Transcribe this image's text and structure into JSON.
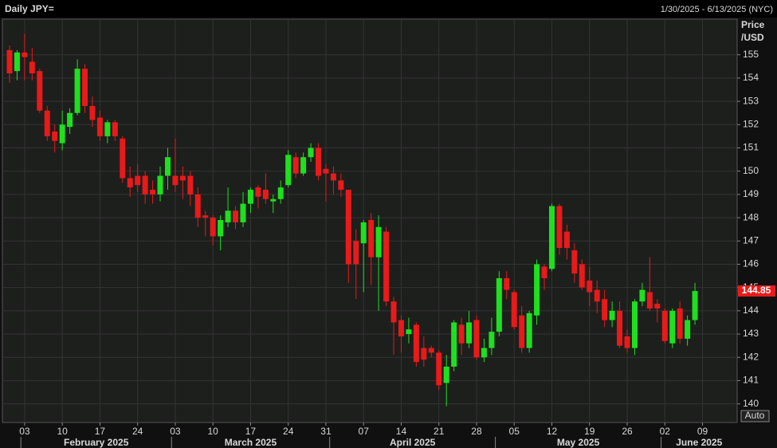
{
  "chart_data": {
    "type": "candlestick",
    "title": "Daily JPY=",
    "date_range": "1/30/2025 - 6/13/2025 (NYC)",
    "ylabel_lines": [
      "Price",
      "/USD"
    ],
    "auto_button": "Auto",
    "last_price": 144.85,
    "up_color": "#1ee01e",
    "down_color": "#e81a1a",
    "grid": true,
    "ylim": [
      139.2,
      156.6
    ],
    "yticks": [
      140,
      141,
      142,
      143,
      144,
      145,
      146,
      147,
      148,
      149,
      150,
      151,
      152,
      153,
      154,
      155
    ],
    "categories": [
      "2025-01-30",
      "2025-01-31",
      "2025-02-03",
      "2025-02-04",
      "2025-02-05",
      "2025-02-06",
      "2025-02-07",
      "2025-02-10",
      "2025-02-11",
      "2025-02-12",
      "2025-02-13",
      "2025-02-14",
      "2025-02-17",
      "2025-02-18",
      "2025-02-19",
      "2025-02-20",
      "2025-02-21",
      "2025-02-24",
      "2025-02-25",
      "2025-02-26",
      "2025-02-27",
      "2025-02-28",
      "2025-03-03",
      "2025-03-04",
      "2025-03-05",
      "2025-03-06",
      "2025-03-07",
      "2025-03-10",
      "2025-03-11",
      "2025-03-12",
      "2025-03-13",
      "2025-03-14",
      "2025-03-17",
      "2025-03-18",
      "2025-03-19",
      "2025-03-20",
      "2025-03-21",
      "2025-03-24",
      "2025-03-25",
      "2025-03-26",
      "2025-03-27",
      "2025-03-28",
      "2025-03-31",
      "2025-04-01",
      "2025-04-02",
      "2025-04-03",
      "2025-04-04",
      "2025-04-07",
      "2025-04-08",
      "2025-04-09",
      "2025-04-10",
      "2025-04-11",
      "2025-04-14",
      "2025-04-15",
      "2025-04-16",
      "2025-04-17",
      "2025-04-18",
      "2025-04-21",
      "2025-04-22",
      "2025-04-23",
      "2025-04-24",
      "2025-04-25",
      "2025-04-28",
      "2025-04-29",
      "2025-04-30",
      "2025-05-01",
      "2025-05-02",
      "2025-05-05",
      "2025-05-06",
      "2025-05-07",
      "2025-05-08",
      "2025-05-09",
      "2025-05-12",
      "2025-05-13",
      "2025-05-14",
      "2025-05-15",
      "2025-05-16",
      "2025-05-19",
      "2025-05-20",
      "2025-05-21",
      "2025-05-22",
      "2025-05-23",
      "2025-05-26",
      "2025-05-27",
      "2025-05-28",
      "2025-05-29",
      "2025-05-30",
      "2025-06-02",
      "2025-06-03",
      "2025-06-04",
      "2025-06-05",
      "2025-06-06",
      "2025-06-09",
      "2025-06-10",
      "2025-06-11",
      "2025-06-12",
      "2025-06-13"
    ],
    "open": [
      155.2,
      154.3,
      155.1,
      154.7,
      154.3,
      152.6,
      151.7,
      151.2,
      151.9,
      152.5,
      154.4,
      152.8,
      152.3,
      151.5,
      152.1,
      151.4,
      149.7,
      149.8,
      149.8,
      149.2,
      149.0,
      149.8,
      149.8,
      149.8,
      149.8,
      149.0,
      148.1,
      148.0,
      147.2,
      147.8,
      148.3,
      147.8,
      148.6,
      149.3,
      149.2,
      148.7,
      148.8,
      149.4,
      150.6,
      149.9,
      150.6,
      151.0,
      150.1,
      149.9,
      149.6,
      149.2,
      147.0,
      146.9,
      147.9,
      146.3,
      147.4,
      144.4,
      143.6,
      143.0,
      143.4,
      142.4,
      142.4,
      142.2,
      140.9,
      141.6,
      143.4,
      142.6,
      143.6,
      142.0,
      142.4,
      143.1,
      145.4,
      144.8,
      143.8,
      142.4,
      143.8,
      145.9,
      145.8,
      148.5,
      147.4,
      146.6,
      146.0,
      145.3,
      144.9,
      144.5,
      143.6,
      144.0,
      142.9,
      142.4,
      144.4,
      144.8,
      144.3,
      144.0,
      142.6,
      144.1,
      142.8,
      143.6,
      null,
      null,
      null,
      null,
      null
    ],
    "high": [
      155.4,
      155.2,
      155.9,
      155.3,
      154.4,
      152.8,
      152.0,
      152.6,
      152.7,
      154.8,
      154.6,
      153.2,
      152.6,
      152.2,
      152.2,
      151.5,
      150.2,
      150.3,
      150.0,
      149.6,
      150.2,
      151.0,
      151.4,
      150.2,
      150.0,
      149.3,
      148.3,
      148.1,
      148.1,
      149.3,
      148.5,
      149.1,
      149.3,
      149.4,
      149.9,
      149.0,
      149.6,
      150.9,
      150.8,
      150.8,
      151.2,
      151.2,
      150.3,
      150.2,
      149.9,
      149.2,
      147.5,
      147.9,
      148.2,
      148.1,
      147.6,
      144.6,
      143.8,
      143.7,
      143.5,
      142.9,
      142.5,
      142.3,
      142.1,
      143.6,
      143.7,
      144.0,
      143.8,
      142.8,
      143.7,
      145.7,
      145.7,
      144.9,
      144.2,
      144.0,
      146.2,
      146.0,
      148.6,
      148.6,
      147.7,
      146.9,
      146.2,
      145.9,
      145.3,
      144.9,
      144.4,
      144.4,
      143.2,
      144.5,
      145.2,
      146.3,
      144.5,
      144.1,
      144.1,
      144.4,
      143.8,
      145.2,
      null,
      null,
      null,
      null,
      null
    ],
    "low": [
      153.8,
      153.9,
      153.9,
      153.9,
      152.5,
      151.3,
      150.8,
      150.9,
      151.6,
      152.4,
      152.5,
      151.9,
      151.3,
      151.2,
      151.3,
      149.5,
      148.9,
      149.1,
      148.6,
      148.6,
      148.7,
      149.2,
      149.1,
      148.8,
      148.5,
      147.6,
      147.2,
      146.8,
      146.6,
      147.6,
      147.5,
      147.6,
      148.2,
      148.4,
      148.6,
      148.2,
      148.6,
      149.3,
      149.7,
      149.8,
      150.4,
      149.6,
      148.7,
      149.0,
      148.9,
      145.2,
      144.5,
      144.8,
      145.1,
      144.0,
      144.2,
      142.1,
      142.2,
      142.6,
      141.6,
      141.6,
      142.0,
      140.6,
      139.9,
      141.4,
      142.1,
      142.4,
      141.9,
      141.8,
      142.1,
      142.9,
      144.5,
      143.2,
      142.2,
      142.2,
      143.4,
      144.9,
      145.7,
      146.4,
      146.2,
      145.2,
      144.9,
      144.2,
      143.9,
      143.3,
      143.3,
      142.4,
      142.2,
      142.1,
      144.2,
      144.0,
      143.5,
      142.6,
      142.4,
      142.6,
      142.5,
      143.4,
      null,
      null,
      null,
      null,
      null
    ],
    "close": [
      154.2,
      155.1,
      154.9,
      154.2,
      152.6,
      151.5,
      151.3,
      152.0,
      152.5,
      154.4,
      152.8,
      152.2,
      151.5,
      152.1,
      151.5,
      149.7,
      149.3,
      149.4,
      149.0,
      149.0,
      149.8,
      150.6,
      149.4,
      149.6,
      149.0,
      148.0,
      148.0,
      147.2,
      147.9,
      148.3,
      147.8,
      148.6,
      149.2,
      148.9,
      148.8,
      148.8,
      149.3,
      150.7,
      149.9,
      150.6,
      151.0,
      149.8,
      149.9,
      149.6,
      149.2,
      146.0,
      146.0,
      147.8,
      146.3,
      147.6,
      144.4,
      143.5,
      142.9,
      143.2,
      141.8,
      141.9,
      142.2,
      140.8,
      141.6,
      143.5,
      142.6,
      143.5,
      142.0,
      142.4,
      143.1,
      145.4,
      144.9,
      143.3,
      142.4,
      143.9,
      146.0,
      145.4,
      148.5,
      146.7,
      146.7,
      145.6,
      145.0,
      144.8,
      144.4,
      143.6,
      144.0,
      142.5,
      142.4,
      144.4,
      144.9,
      144.1,
      144.1,
      142.7,
      144.0,
      142.8,
      143.6,
      144.85,
      null,
      null,
      null,
      null,
      null
    ],
    "xticks": [
      {
        "value": "2025-02-03",
        "label": "03"
      },
      {
        "value": "2025-02-10",
        "label": "10"
      },
      {
        "value": "2025-02-17",
        "label": "17"
      },
      {
        "value": "2025-02-24",
        "label": "24"
      },
      {
        "value": "2025-03-03",
        "label": "03"
      },
      {
        "value": "2025-03-10",
        "label": "10"
      },
      {
        "value": "2025-03-17",
        "label": "17"
      },
      {
        "value": "2025-03-24",
        "label": "24"
      },
      {
        "value": "2025-03-31",
        "label": "31"
      },
      {
        "value": "2025-04-07",
        "label": "07"
      },
      {
        "value": "2025-04-14",
        "label": "14"
      },
      {
        "value": "2025-04-21",
        "label": "21"
      },
      {
        "value": "2025-04-28",
        "label": "28"
      },
      {
        "value": "2025-05-05",
        "label": "05"
      },
      {
        "value": "2025-05-12",
        "label": "12"
      },
      {
        "value": "2025-05-19",
        "label": "19"
      },
      {
        "value": "2025-05-26",
        "label": "26"
      },
      {
        "value": "2025-06-02",
        "label": "02"
      },
      {
        "value": "2025-06-09",
        "label": "09"
      }
    ],
    "months": [
      {
        "value": "2025-02-03",
        "label": "February 2025"
      },
      {
        "value": "2025-03-03",
        "label": "March 2025"
      },
      {
        "value": "2025-04-01",
        "label": "April 2025"
      },
      {
        "value": "2025-05-01",
        "label": "May 2025"
      },
      {
        "value": "2025-06-02",
        "label": "June 2025"
      }
    ]
  }
}
